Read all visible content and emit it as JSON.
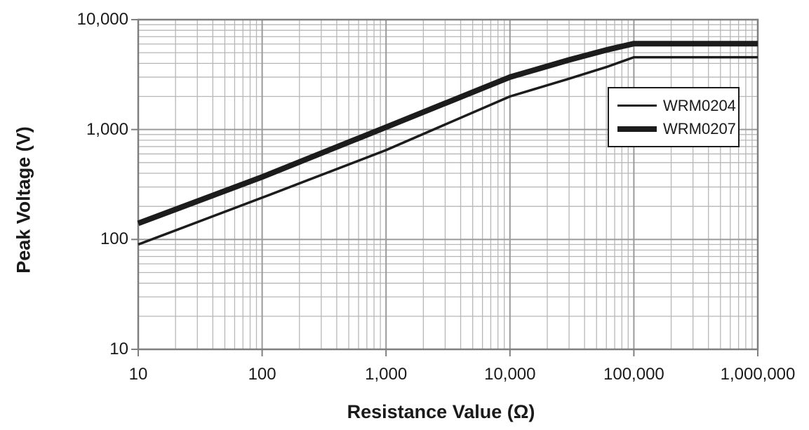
{
  "chart_data": {
    "type": "line",
    "title": "",
    "xlabel": "Resistance Value (Ω)",
    "ylabel": "Peak Voltage (V)",
    "x_scale": "log",
    "y_scale": "log",
    "xlim": [
      10,
      1000000
    ],
    "ylim": [
      10,
      10000
    ],
    "grid": "log major and minor gridlines, on",
    "legend_position": "upper right",
    "x_ticks": [
      "10",
      "100",
      "1,000",
      "10,000",
      "100,000",
      "1,000,000"
    ],
    "x_tick_values": [
      10,
      100,
      1000,
      10000,
      100000,
      1000000
    ],
    "y_ticks": [
      "10",
      "100",
      "1,000",
      "10,000"
    ],
    "y_tick_values": [
      10,
      100,
      1000,
      10000
    ],
    "series": [
      {
        "name": "WRM0204",
        "stroke_width": 3.5,
        "x": [
          10,
          100,
          1000,
          10000,
          30000,
          60000,
          100000,
          1000000
        ],
        "y": [
          90,
          240,
          650,
          2000,
          2900,
          3700,
          4550,
          4550
        ]
      },
      {
        "name": "WRM0207",
        "stroke_width": 8,
        "x": [
          10,
          100,
          1000,
          10000,
          30000,
          60000,
          100000,
          1000000
        ],
        "y": [
          140,
          370,
          1050,
          3000,
          4300,
          5300,
          6050,
          6050
        ]
      }
    ],
    "colors": {
      "line": "#1c1c1c",
      "grid_minor": "#b7b7b7",
      "grid_major": "#9a9a9a",
      "axis_border": "#7f7f7f",
      "text": "#1a1a1a",
      "background": "#ffffff"
    }
  }
}
